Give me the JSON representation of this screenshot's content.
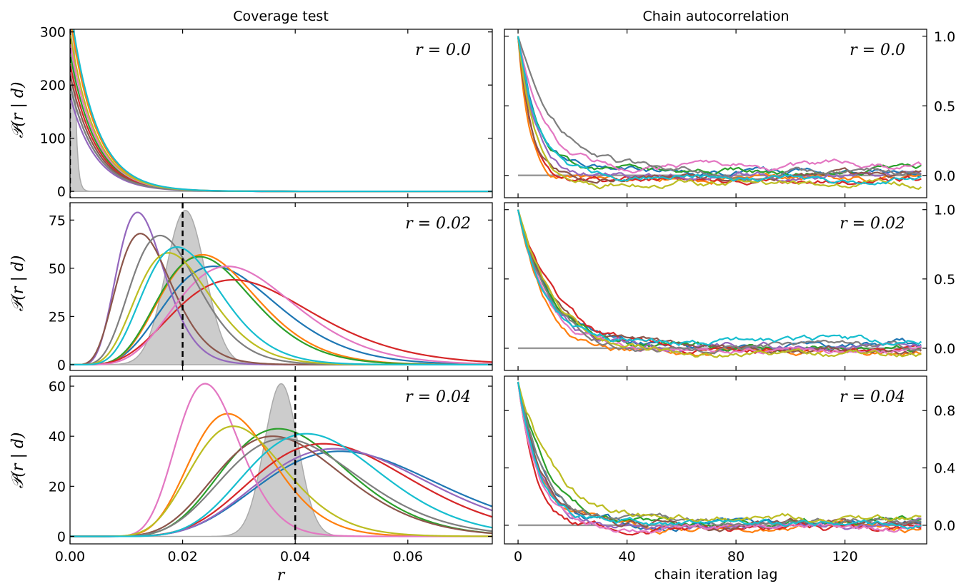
{
  "figure": {
    "left_title": "Coverage test",
    "right_title": "Chain autocorrelation",
    "left_xlabel": "r",
    "right_xlabel": "chain iteration lag",
    "ylabel": "𝒫(r | d)"
  },
  "series_colors": [
    "#1f77b4",
    "#ff7f0e",
    "#2ca02c",
    "#d62728",
    "#9467bd",
    "#8c564b",
    "#e377c2",
    "#7f7f7f",
    "#bcbd22",
    "#17becf"
  ],
  "chart_data": [
    {
      "type": "line",
      "panel": "coverage-r0.00",
      "annotation": "r = 0.0",
      "true_r": 0.0,
      "xlim": [
        0.0,
        0.075
      ],
      "ylim": [
        -12,
        305
      ],
      "xticks": [
        0.0,
        0.02,
        0.04,
        0.06
      ],
      "xtick_labels": [
        "0.00",
        "0.02",
        "0.04",
        "0.06"
      ],
      "yticks": [
        0,
        100,
        200,
        300
      ],
      "ytick_labels": [
        "0",
        "100",
        "200",
        "300"
      ],
      "shaded_peak": {
        "center": 0.0008,
        "width": 0.0012,
        "height": 2000,
        "kind": "decay"
      },
      "series": [
        {
          "color": "#1f77b4",
          "x": [
            0.0,
            0.004,
            0.008,
            0.012,
            0.016,
            0.075
          ],
          "y": [
            200,
            110,
            45,
            15,
            3,
            0
          ]
        },
        {
          "color": "#ff7f0e",
          "x": [
            0.0,
            0.004,
            0.008,
            0.012,
            0.016,
            0.075
          ],
          "y": [
            330,
            90,
            25,
            7,
            1,
            0
          ]
        },
        {
          "color": "#2ca02c",
          "x": [
            0.0,
            0.004,
            0.008,
            0.012,
            0.016,
            0.075
          ],
          "y": [
            260,
            100,
            35,
            10,
            2,
            0
          ]
        },
        {
          "color": "#d62728",
          "x": [
            0.0,
            0.004,
            0.008,
            0.012,
            0.016,
            0.075
          ],
          "y": [
            240,
            95,
            30,
            8,
            1,
            0
          ]
        },
        {
          "color": "#9467bd",
          "x": [
            0.0,
            0.004,
            0.008,
            0.012,
            0.016,
            0.075
          ],
          "y": [
            180,
            105,
            40,
            12,
            2,
            0
          ]
        },
        {
          "color": "#8c564b",
          "x": [
            0.0,
            0.004,
            0.008,
            0.012,
            0.016,
            0.075
          ],
          "y": [
            220,
            100,
            38,
            11,
            2,
            0
          ]
        },
        {
          "color": "#e377c2",
          "x": [
            0.0,
            0.004,
            0.008,
            0.012,
            0.016,
            0.075
          ],
          "y": [
            280,
            110,
            40,
            12,
            2,
            0
          ]
        },
        {
          "color": "#7f7f7f",
          "x": [
            0.0,
            0.004,
            0.008,
            0.012,
            0.016,
            0.075
          ],
          "y": [
            200,
            120,
            55,
            20,
            5,
            0
          ]
        },
        {
          "color": "#bcbd22",
          "x": [
            0.0,
            0.004,
            0.008,
            0.012,
            0.016,
            0.075
          ],
          "y": [
            300,
            120,
            50,
            16,
            4,
            0
          ]
        },
        {
          "color": "#17becf",
          "x": [
            0.0,
            0.004,
            0.008,
            0.012,
            0.016,
            0.075
          ],
          "y": [
            350,
            100,
            30,
            8,
            1,
            0
          ]
        }
      ]
    },
    {
      "type": "line",
      "panel": "coverage-r0.02",
      "annotation": "r = 0.02",
      "true_r": 0.02,
      "xlim": [
        0.0,
        0.075
      ],
      "ylim": [
        -3,
        84
      ],
      "xticks": [
        0.0,
        0.02,
        0.04,
        0.06
      ],
      "xtick_labels": [
        "0.00",
        "0.02",
        "0.04",
        "0.06"
      ],
      "yticks": [
        0,
        25,
        50,
        75
      ],
      "ytick_labels": [
        "0",
        "25",
        "50",
        "75"
      ],
      "shaded_peak": {
        "center": 0.0205,
        "width": 0.0035,
        "height": 80,
        "kind": "gauss"
      },
      "series": [
        {
          "color": "#1f77b4",
          "peak_x": 0.0255,
          "peak_y": 51,
          "shape": 6.5
        },
        {
          "color": "#ff7f0e",
          "peak_x": 0.0235,
          "peak_y": 57,
          "shape": 7.5
        },
        {
          "color": "#2ca02c",
          "peak_x": 0.023,
          "peak_y": 56,
          "shape": 7.5
        },
        {
          "color": "#d62728",
          "peak_x": 0.029,
          "peak_y": 44,
          "shape": 5.5
        },
        {
          "color": "#9467bd",
          "peak_x": 0.012,
          "peak_y": 79,
          "shape": 8.0
        },
        {
          "color": "#8c564b",
          "peak_x": 0.0125,
          "peak_y": 68,
          "shape": 6.5
        },
        {
          "color": "#e377c2",
          "peak_x": 0.028,
          "peak_y": 51,
          "shape": 7.0
        },
        {
          "color": "#7f7f7f",
          "peak_x": 0.016,
          "peak_y": 67,
          "shape": 7.0
        },
        {
          "color": "#bcbd22",
          "peak_x": 0.0175,
          "peak_y": 58,
          "shape": 7.0
        },
        {
          "color": "#17becf",
          "peak_x": 0.019,
          "peak_y": 61,
          "shape": 7.5
        }
      ]
    },
    {
      "type": "line",
      "panel": "coverage-r0.04",
      "annotation": "r = 0.04",
      "true_r": 0.04,
      "xlim": [
        0.0,
        0.075
      ],
      "ylim": [
        -3,
        64
      ],
      "xticks": [
        0.0,
        0.02,
        0.04,
        0.06
      ],
      "xtick_labels": [
        "0.00",
        "0.02",
        "0.04",
        "0.06"
      ],
      "yticks": [
        0,
        20,
        40,
        60
      ],
      "ytick_labels": [
        "0",
        "20",
        "40",
        "60"
      ],
      "shaded_peak": {
        "center": 0.0375,
        "width": 0.003,
        "height": 61,
        "kind": "gauss"
      },
      "series": [
        {
          "color": "#1f77b4",
          "peak_x": 0.048,
          "peak_y": 34,
          "shape": 9
        },
        {
          "color": "#ff7f0e",
          "peak_x": 0.028,
          "peak_y": 49,
          "shape": 14
        },
        {
          "color": "#2ca02c",
          "peak_x": 0.037,
          "peak_y": 43,
          "shape": 11
        },
        {
          "color": "#d62728",
          "peak_x": 0.045,
          "peak_y": 37,
          "shape": 10
        },
        {
          "color": "#9467bd",
          "peak_x": 0.047,
          "peak_y": 35,
          "shape": 9.5
        },
        {
          "color": "#8c564b",
          "peak_x": 0.036,
          "peak_y": 40,
          "shape": 10
        },
        {
          "color": "#e377c2",
          "peak_x": 0.024,
          "peak_y": 61,
          "shape": 18
        },
        {
          "color": "#7f7f7f",
          "peak_x": 0.038,
          "peak_y": 39,
          "shape": 10
        },
        {
          "color": "#bcbd22",
          "peak_x": 0.029,
          "peak_y": 44,
          "shape": 12
        },
        {
          "color": "#17becf",
          "peak_x": 0.042,
          "peak_y": 41,
          "shape": 12
        }
      ]
    },
    {
      "type": "line",
      "panel": "autocorr-r0.00",
      "annotation": "r = 0.0",
      "xlim": [
        -5,
        150
      ],
      "ylim": [
        -0.16,
        1.05
      ],
      "xticks": [
        0,
        40,
        80,
        120
      ],
      "xtick_labels": [
        "0",
        "40",
        "80",
        "120"
      ],
      "yticks": [
        0.0,
        0.5,
        1.0
      ],
      "ytick_labels": [
        "0.0",
        "0.5",
        "1.0"
      ],
      "reference_line": {
        "y": 0.0,
        "x": [
          0,
          148
        ],
        "color": "#999999"
      },
      "series": [
        {
          "color": "#1f77b4",
          "tau": 8,
          "tail": 0.02
        },
        {
          "color": "#ff7f0e",
          "tau": 4,
          "tail": -0.02
        },
        {
          "color": "#2ca02c",
          "tau": 7,
          "tail": 0.03
        },
        {
          "color": "#d62728",
          "tau": 5,
          "tail": -0.03
        },
        {
          "color": "#9467bd",
          "tau": 6,
          "tail": 0.0
        },
        {
          "color": "#8c564b",
          "tau": 5,
          "tail": -0.01
        },
        {
          "color": "#e377c2",
          "tau": 9,
          "tail": 0.06
        },
        {
          "color": "#7f7f7f",
          "tau": 15,
          "tail": 0.02
        },
        {
          "color": "#bcbd22",
          "tau": 6,
          "tail": -0.06
        },
        {
          "color": "#17becf",
          "tau": 8,
          "tail": -0.02
        }
      ]
    },
    {
      "type": "line",
      "panel": "autocorr-r0.02",
      "annotation": "r = 0.02",
      "xlim": [
        -5,
        150
      ],
      "ylim": [
        -0.16,
        1.05
      ],
      "xticks": [
        0,
        40,
        80,
        120
      ],
      "xtick_labels": [
        "0",
        "40",
        "80",
        "120"
      ],
      "yticks": [
        0.0,
        0.5,
        1.0
      ],
      "ytick_labels": [
        "0.0",
        "0.5",
        "1.0"
      ],
      "reference_line": {
        "y": 0.0,
        "x": [
          0,
          148
        ],
        "color": "#999999"
      },
      "series": [
        {
          "color": "#1f77b4",
          "tau": 12,
          "tail": 0.02
        },
        {
          "color": "#ff7f0e",
          "tau": 10,
          "tail": -0.03
        },
        {
          "color": "#2ca02c",
          "tau": 12,
          "tail": 0.01
        },
        {
          "color": "#d62728",
          "tau": 14,
          "tail": 0.0
        },
        {
          "color": "#9467bd",
          "tau": 11,
          "tail": 0.01
        },
        {
          "color": "#8c564b",
          "tau": 13,
          "tail": -0.01
        },
        {
          "color": "#e377c2",
          "tau": 11,
          "tail": -0.02
        },
        {
          "color": "#7f7f7f",
          "tau": 12,
          "tail": 0.0
        },
        {
          "color": "#bcbd22",
          "tau": 15,
          "tail": -0.04
        },
        {
          "color": "#17becf",
          "tau": 10,
          "tail": 0.05
        }
      ]
    },
    {
      "type": "line",
      "panel": "autocorr-r0.04",
      "annotation": "r = 0.04",
      "xlim": [
        -5,
        150
      ],
      "ylim": [
        -0.13,
        1.04
      ],
      "xticks": [
        0,
        40,
        80,
        120
      ],
      "xtick_labels": [
        "0",
        "40",
        "80",
        "120"
      ],
      "yticks": [
        0.0,
        0.4,
        0.8
      ],
      "ytick_labels": [
        "0.0",
        "0.4",
        "0.8"
      ],
      "reference_line": {
        "y": 0.0,
        "x": [
          0,
          148
        ],
        "color": "#999999"
      },
      "series": [
        {
          "color": "#1f77b4",
          "tau": 9,
          "tail": 0.01
        },
        {
          "color": "#ff7f0e",
          "tau": 8,
          "tail": -0.01
        },
        {
          "color": "#2ca02c",
          "tau": 11,
          "tail": 0.03
        },
        {
          "color": "#d62728",
          "tau": 7,
          "tail": -0.03
        },
        {
          "color": "#9467bd",
          "tau": 8,
          "tail": 0.0
        },
        {
          "color": "#8c564b",
          "tau": 9,
          "tail": 0.0
        },
        {
          "color": "#e377c2",
          "tau": 7,
          "tail": -0.02
        },
        {
          "color": "#7f7f7f",
          "tau": 10,
          "tail": 0.02
        },
        {
          "color": "#bcbd22",
          "tau": 12,
          "tail": 0.05
        },
        {
          "color": "#17becf",
          "tau": 8,
          "tail": 0.01
        }
      ]
    }
  ]
}
